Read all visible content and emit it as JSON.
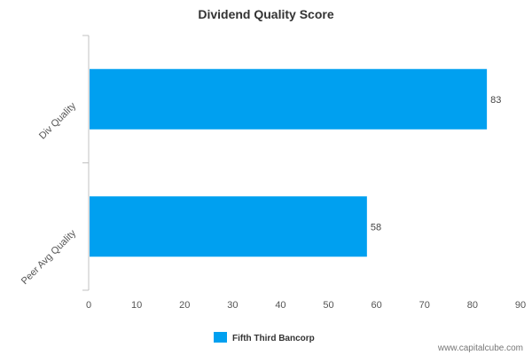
{
  "chart_data": {
    "type": "bar",
    "orientation": "horizontal",
    "title": "Dividend Quality Score",
    "categories": [
      "Div Quality",
      "Peer Avg Quality"
    ],
    "series": [
      {
        "name": "Fifth Third Bancorp",
        "values": [
          83,
          58
        ],
        "color": "#00a0f0"
      }
    ],
    "xlim": [
      0,
      90
    ],
    "xticks": [
      0,
      10,
      20,
      30,
      40,
      50,
      60,
      70,
      80,
      90
    ],
    "grid": false,
    "legend": "bottom-center",
    "data_labels": true
  },
  "credit": "www.capitalcube.com",
  "colors": {
    "bar": "#00a0f0",
    "axis": "#c0c0c0",
    "text": "#333333"
  }
}
